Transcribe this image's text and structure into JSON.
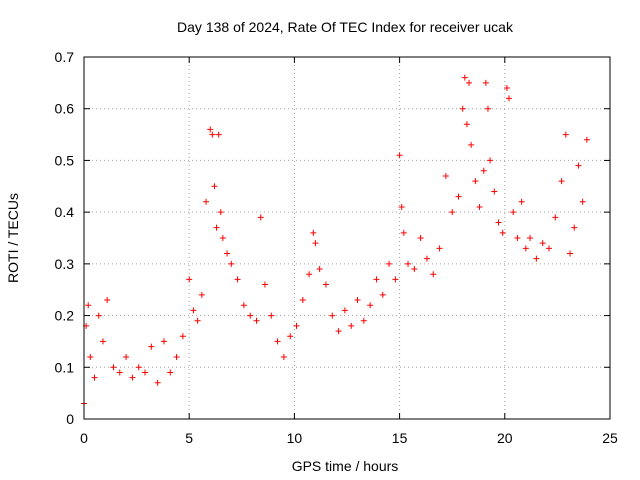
{
  "chart_data": {
    "type": "scatter",
    "title": "Day 138 of 2024, Rate Of TEC Index for receiver ucak",
    "xlabel": "GPS time / hours",
    "ylabel": "ROTI / TECUs",
    "xlim": [
      0,
      25
    ],
    "ylim": [
      0,
      0.7
    ],
    "x_ticks": [
      "0",
      "5",
      "10",
      "15",
      "20",
      "25"
    ],
    "y_ticks": [
      "0",
      "0.1",
      "0.2",
      "0.3",
      "0.4",
      "0.5",
      "0.6",
      "0.7"
    ],
    "grid": true,
    "marker": "plus",
    "color": "#ff0000",
    "series": [
      {
        "x": [
          0.0,
          0.1,
          0.2,
          0.3,
          0.5,
          0.7,
          0.9,
          1.1,
          1.4,
          1.7,
          2.0,
          2.3,
          2.6,
          2.9,
          3.2,
          3.5,
          3.8,
          4.1,
          4.4,
          4.7,
          5.0,
          5.2,
          5.4,
          5.6,
          5.8,
          6.0,
          6.1,
          6.2,
          6.3,
          6.4,
          6.5,
          6.6,
          6.8,
          7.0,
          7.3,
          7.6,
          7.9,
          8.2,
          8.4,
          8.6,
          8.9,
          9.2,
          9.5,
          9.8,
          10.1,
          10.4,
          10.7,
          10.9,
          11.0,
          11.2,
          11.5,
          11.8,
          12.1,
          12.4,
          12.7,
          13.0,
          13.3,
          13.6,
          13.9,
          14.2,
          14.5,
          14.8,
          15.0,
          15.1,
          15.2,
          15.4,
          15.7,
          16.0,
          16.3,
          16.6,
          16.9,
          17.2,
          17.5,
          17.8,
          18.0,
          18.1,
          18.2,
          18.3,
          18.4,
          18.6,
          18.8,
          19.0,
          19.1,
          19.2,
          19.3,
          19.5,
          19.7,
          19.9,
          20.1,
          20.2,
          20.4,
          20.6,
          20.8,
          21.0,
          21.2,
          21.5,
          21.8,
          22.1,
          22.4,
          22.7,
          22.9,
          23.1,
          23.3,
          23.5,
          23.7,
          23.9
        ],
        "y": [
          0.03,
          0.18,
          0.22,
          0.12,
          0.08,
          0.2,
          0.15,
          0.23,
          0.1,
          0.09,
          0.12,
          0.08,
          0.1,
          0.09,
          0.14,
          0.07,
          0.15,
          0.09,
          0.12,
          0.16,
          0.27,
          0.21,
          0.19,
          0.24,
          0.42,
          0.56,
          0.55,
          0.45,
          0.37,
          0.55,
          0.4,
          0.35,
          0.32,
          0.3,
          0.27,
          0.22,
          0.2,
          0.19,
          0.39,
          0.26,
          0.2,
          0.15,
          0.12,
          0.16,
          0.18,
          0.23,
          0.28,
          0.36,
          0.34,
          0.29,
          0.26,
          0.2,
          0.17,
          0.21,
          0.18,
          0.23,
          0.19,
          0.22,
          0.27,
          0.24,
          0.3,
          0.27,
          0.51,
          0.41,
          0.36,
          0.3,
          0.29,
          0.35,
          0.31,
          0.28,
          0.33,
          0.47,
          0.4,
          0.43,
          0.6,
          0.66,
          0.57,
          0.65,
          0.53,
          0.46,
          0.41,
          0.48,
          0.65,
          0.6,
          0.5,
          0.44,
          0.38,
          0.36,
          0.64,
          0.62,
          0.4,
          0.35,
          0.42,
          0.33,
          0.35,
          0.31,
          0.34,
          0.33,
          0.39,
          0.46,
          0.55,
          0.32,
          0.37,
          0.49,
          0.42,
          0.54
        ]
      }
    ]
  }
}
